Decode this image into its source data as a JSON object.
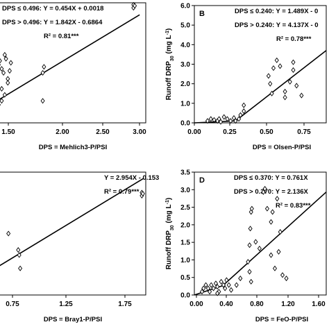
{
  "chart_data": [
    {
      "type": "scatter",
      "panel_label": "",
      "xlabel": "DPS = Mehlich3-P/PSI",
      "ylabel": "",
      "x_ticks": [
        "1.50",
        "2.00",
        "2.50",
        "3.00"
      ],
      "y_ticks": [],
      "xlim": [
        1.0,
        3.4
      ],
      "ylim": [
        0,
        6.0
      ],
      "equations": [
        "DPS ≤ 0.496: Y = 0.454X + 0.0018",
        "DPS > 0.496: Y = 1.842X - 0.6864",
        "R² = 0.81***"
      ],
      "points": [
        [
          1.0,
          2.9
        ],
        [
          1.02,
          3.1
        ],
        [
          1.05,
          2.7
        ],
        [
          1.08,
          2.5
        ],
        [
          1.1,
          3.4
        ],
        [
          1.12,
          3.2
        ],
        [
          1.15,
          2.2
        ],
        [
          1.18,
          2.6
        ],
        [
          1.2,
          3.0
        ],
        [
          1.05,
          1.7
        ],
        [
          1.1,
          1.4
        ],
        [
          1.15,
          2.0
        ],
        [
          1.0,
          0.9
        ],
        [
          1.05,
          1.1
        ],
        [
          1.72,
          2.5
        ],
        [
          1.74,
          2.8
        ],
        [
          1.72,
          1.1
        ],
        [
          3.2,
          5.9
        ],
        [
          3.2,
          5.75
        ],
        [
          3.22,
          5.85
        ]
      ],
      "fit_lines": [
        [
          [
            1.0,
            1.15
          ],
          [
            3.3,
            5.4
          ]
        ]
      ]
    },
    {
      "type": "scatter",
      "panel_label": "B",
      "xlabel": "DPS = Olsen-P/PSI",
      "ylabel": "Runoff DRP30 (mg L-1)",
      "x_ticks": [
        "0.00",
        "0.25",
        "0.50",
        "0.75"
      ],
      "y_ticks": [
        "0.0",
        "1.0",
        "2.0",
        "3.0",
        "4.0",
        "5.0",
        "6.0"
      ],
      "xlim": [
        0,
        0.8
      ],
      "ylim": [
        0,
        6.0
      ],
      "equations": [
        "DPS ≤ 0.240: Y = 1.489X - 0",
        "DPS > 0.240: Y = 4.137X - 0",
        "R² = 0.78***"
      ],
      "points": [
        [
          0.08,
          0.1
        ],
        [
          0.1,
          0.2
        ],
        [
          0.12,
          0.15
        ],
        [
          0.14,
          0.1
        ],
        [
          0.15,
          0.2
        ],
        [
          0.16,
          0.05
        ],
        [
          0.18,
          0.3
        ],
        [
          0.2,
          0.2
        ],
        [
          0.22,
          0.1
        ],
        [
          0.24,
          0.25
        ],
        [
          0.25,
          0.1
        ],
        [
          0.27,
          0.2
        ],
        [
          0.28,
          0.4
        ],
        [
          0.3,
          0.9
        ],
        [
          0.3,
          0.6
        ],
        [
          0.45,
          2.4
        ],
        [
          0.46,
          2.0
        ],
        [
          0.47,
          1.5
        ],
        [
          0.48,
          2.8
        ],
        [
          0.5,
          3.2
        ],
        [
          0.52,
          2.9
        ],
        [
          0.55,
          1.6
        ],
        [
          0.55,
          1.3
        ],
        [
          0.58,
          2.1
        ],
        [
          0.6,
          3.1
        ],
        [
          0.6,
          2.7
        ],
        [
          0.62,
          1.9
        ],
        [
          0.65,
          1.4
        ]
      ],
      "fit_lines": [
        [
          [
            0.0,
            0.0
          ],
          [
            0.25,
            0.1
          ]
        ],
        [
          [
            0.25,
            0.1
          ],
          [
            0.8,
            3.7
          ]
        ]
      ]
    },
    {
      "type": "scatter",
      "panel_label": "",
      "xlabel": "DPS = Bray1-P/PSI",
      "ylabel": "",
      "x_ticks": [
        "0.75",
        "1.25",
        "1.75"
      ],
      "y_ticks": [],
      "xlim": [
        0.5,
        2.0
      ],
      "ylim": [
        0,
        6.0
      ],
      "equations": [
        "Y = 2.954X - 0.153",
        "R² = 0.79***"
      ],
      "points": [
        [
          0.6,
          3.0
        ],
        [
          0.7,
          2.2
        ],
        [
          0.71,
          1.95
        ],
        [
          0.72,
          1.3
        ],
        [
          1.96,
          5.0
        ],
        [
          1.96,
          4.85
        ],
        [
          1.97,
          4.95
        ]
      ],
      "fit_lines": [
        [
          [
            0.5,
            1.4
          ],
          [
            1.98,
            5.7
          ]
        ]
      ]
    },
    {
      "type": "scatter",
      "panel_label": "D",
      "xlabel": "DPS = FeO-P/PSI",
      "ylabel": "Runoff DRP30 (mg L-1)",
      "x_ticks": [
        "0.00",
        "0.40",
        "0.80",
        "1.20",
        "1.60"
      ],
      "y_ticks": [
        "0.0",
        "0.5",
        "1.0",
        "1.5",
        "2.0",
        "2.5",
        "3.0",
        "3.5"
      ],
      "xlim": [
        0,
        1.72
      ],
      "ylim": [
        0,
        3.7
      ],
      "equations": [
        "DPS ≤ 0.370: Y = 0.761X",
        "DPS > 0.370: Y = 2.136X",
        "R² = 0.83***"
      ],
      "points": [
        [
          0.1,
          0.1
        ],
        [
          0.12,
          0.2
        ],
        [
          0.15,
          0.3
        ],
        [
          0.18,
          0.2
        ],
        [
          0.2,
          0.1
        ],
        [
          0.22,
          0.3
        ],
        [
          0.25,
          0.2
        ],
        [
          0.28,
          0.35
        ],
        [
          0.3,
          0.25
        ],
        [
          0.32,
          0.1
        ],
        [
          0.35,
          0.4
        ],
        [
          0.38,
          0.3
        ],
        [
          0.4,
          0.2
        ],
        [
          0.42,
          0.45
        ],
        [
          0.45,
          0.3
        ],
        [
          0.48,
          0.15
        ],
        [
          0.3,
          0.05
        ],
        [
          0.55,
          0.3
        ],
        [
          0.6,
          0.5
        ],
        [
          0.7,
          1.0
        ],
        [
          0.72,
          1.5
        ],
        [
          0.73,
          2.0
        ],
        [
          0.74,
          2.5
        ],
        [
          0.75,
          2.6
        ],
        [
          0.72,
          0.7
        ],
        [
          0.74,
          0.4
        ],
        [
          0.8,
          1.6
        ],
        [
          0.85,
          1.4
        ],
        [
          0.9,
          3.1
        ],
        [
          0.92,
          3.2
        ],
        [
          0.95,
          2.6
        ],
        [
          1.0,
          2.2
        ],
        [
          1.02,
          2.5
        ],
        [
          1.0,
          1.2
        ],
        [
          1.05,
          0.8
        ],
        [
          1.08,
          2.9
        ],
        [
          1.12,
          1.9
        ],
        [
          1.15,
          0.6
        ],
        [
          1.2,
          0.5
        ],
        [
          1.1,
          1.3
        ]
      ],
      "fit_lines": [
        [
          [
            0.0,
            0.0
          ],
          [
            0.37,
            0.28
          ]
        ],
        [
          [
            0.37,
            0.28
          ],
          [
            1.72,
            3.1
          ]
        ]
      ]
    }
  ]
}
